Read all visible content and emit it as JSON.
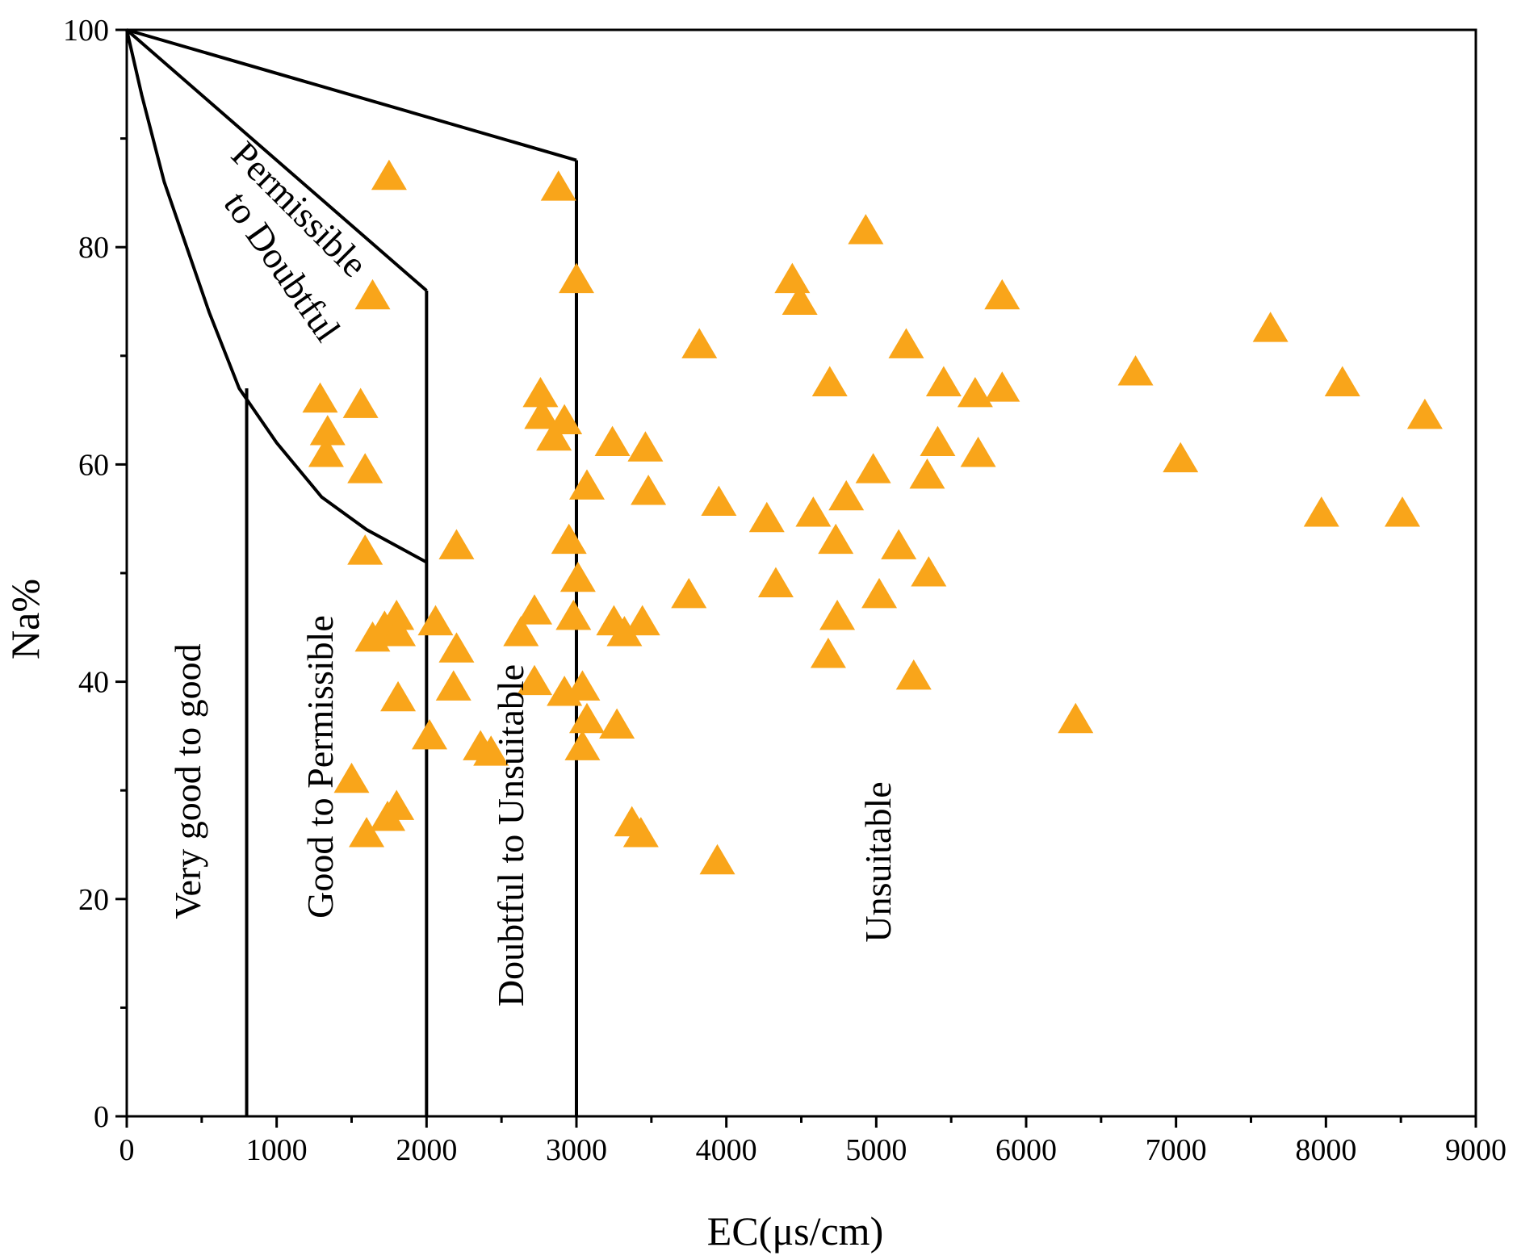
{
  "chart_data": {
    "type": "scatter",
    "xlabel": "EC(μs/cm)",
    "ylabel": "Na%",
    "xlim": [
      0,
      9000
    ],
    "ylim": [
      0,
      100
    ],
    "x_ticks": [
      "0",
      "1000",
      "2000",
      "3000",
      "4000",
      "5000",
      "6000",
      "7000",
      "8000",
      "9000"
    ],
    "y_ticks": [
      "0",
      "20",
      "40",
      "60",
      "80",
      "100"
    ],
    "marker_color": "#f9a51a",
    "marker_shape": "triangle",
    "zone_labels": {
      "very_good": "Very good to good",
      "good": "Good to Permissible",
      "permissible": "Permissible",
      "to_doubtful": "to Doubtful",
      "doubtful": "Doubtful to Unsuitable",
      "unsuitable": "Unsuitable"
    },
    "boundaries": {
      "curve_very_good": [
        [
          0,
          100
        ],
        [
          100,
          94
        ],
        [
          250,
          86
        ],
        [
          400,
          80
        ],
        [
          550,
          74
        ],
        [
          750,
          67
        ],
        [
          1000,
          62
        ],
        [
          1300,
          57
        ],
        [
          1600,
          54
        ],
        [
          2000,
          51
        ]
      ],
      "line_good": [
        [
          0,
          100
        ],
        [
          2000,
          76
        ]
      ],
      "line_permissible": [
        [
          0,
          100
        ],
        [
          3000,
          88
        ]
      ],
      "vertical_800": [
        [
          800,
          0
        ],
        [
          800,
          67
        ]
      ],
      "vertical_2000": [
        [
          2000,
          0
        ],
        [
          2000,
          76
        ]
      ],
      "vertical_3000": [
        [
          3000,
          0
        ],
        [
          3000,
          88
        ]
      ]
    },
    "points": [
      [
        1750,
        86.5
      ],
      [
        2880,
        85.5
      ],
      [
        4930,
        81.5
      ],
      [
        1640,
        75.5
      ],
      [
        3000,
        77
      ],
      [
        4440,
        77
      ],
      [
        4490,
        75
      ],
      [
        5840,
        75.5
      ],
      [
        3820,
        71
      ],
      [
        5200,
        71
      ],
      [
        7630,
        72.5
      ],
      [
        4690,
        67.5
      ],
      [
        6730,
        68.5
      ],
      [
        8110,
        67.5
      ],
      [
        5450,
        67.5
      ],
      [
        5660,
        66.5
      ],
      [
        5840,
        67
      ],
      [
        1290,
        66
      ],
      [
        1560,
        65.5
      ],
      [
        2760,
        66.5
      ],
      [
        2770,
        64.5
      ],
      [
        2920,
        64
      ],
      [
        2850,
        62.5
      ],
      [
        1340,
        63
      ],
      [
        1330,
        61
      ],
      [
        1590,
        59.5
      ],
      [
        3240,
        62
      ],
      [
        3460,
        61.5
      ],
      [
        5410,
        62
      ],
      [
        5680,
        61
      ],
      [
        7030,
        60.5
      ],
      [
        8660,
        64.5
      ],
      [
        4980,
        59.5
      ],
      [
        5340,
        59
      ],
      [
        3070,
        58
      ],
      [
        3480,
        57.5
      ],
      [
        3950,
        56.5
      ],
      [
        4800,
        57
      ],
      [
        4580,
        55.5
      ],
      [
        4270,
        55
      ],
      [
        7970,
        55.5
      ],
      [
        8510,
        55.5
      ],
      [
        1590,
        52
      ],
      [
        2200,
        52.5
      ],
      [
        2950,
        53
      ],
      [
        4730,
        53
      ],
      [
        5150,
        52.5
      ],
      [
        3010,
        49.5
      ],
      [
        5350,
        50
      ],
      [
        4330,
        49
      ],
      [
        3750,
        48
      ],
      [
        5020,
        48
      ],
      [
        1800,
        46
      ],
      [
        2060,
        45.5
      ],
      [
        2720,
        46.5
      ],
      [
        2980,
        46
      ],
      [
        3250,
        45.5
      ],
      [
        3440,
        45.5
      ],
      [
        4740,
        46
      ],
      [
        1640,
        44
      ],
      [
        1720,
        45
      ],
      [
        1810,
        44.5
      ],
      [
        2630,
        44.5
      ],
      [
        3320,
        44.5
      ],
      [
        2200,
        43
      ],
      [
        4680,
        42.5
      ],
      [
        2180,
        39.5
      ],
      [
        2720,
        40
      ],
      [
        1810,
        38.5
      ],
      [
        2920,
        39
      ],
      [
        3040,
        39.5
      ],
      [
        5250,
        40.5
      ],
      [
        3070,
        36.5
      ],
      [
        3270,
        36
      ],
      [
        6330,
        36.5
      ],
      [
        2020,
        35
      ],
      [
        2360,
        34
      ],
      [
        2430,
        33.5
      ],
      [
        3040,
        34
      ],
      [
        1500,
        31
      ],
      [
        1800,
        28.5
      ],
      [
        1740,
        27.5
      ],
      [
        3370,
        27
      ],
      [
        3430,
        26
      ],
      [
        1600,
        26
      ],
      [
        3940,
        23.5
      ]
    ]
  }
}
